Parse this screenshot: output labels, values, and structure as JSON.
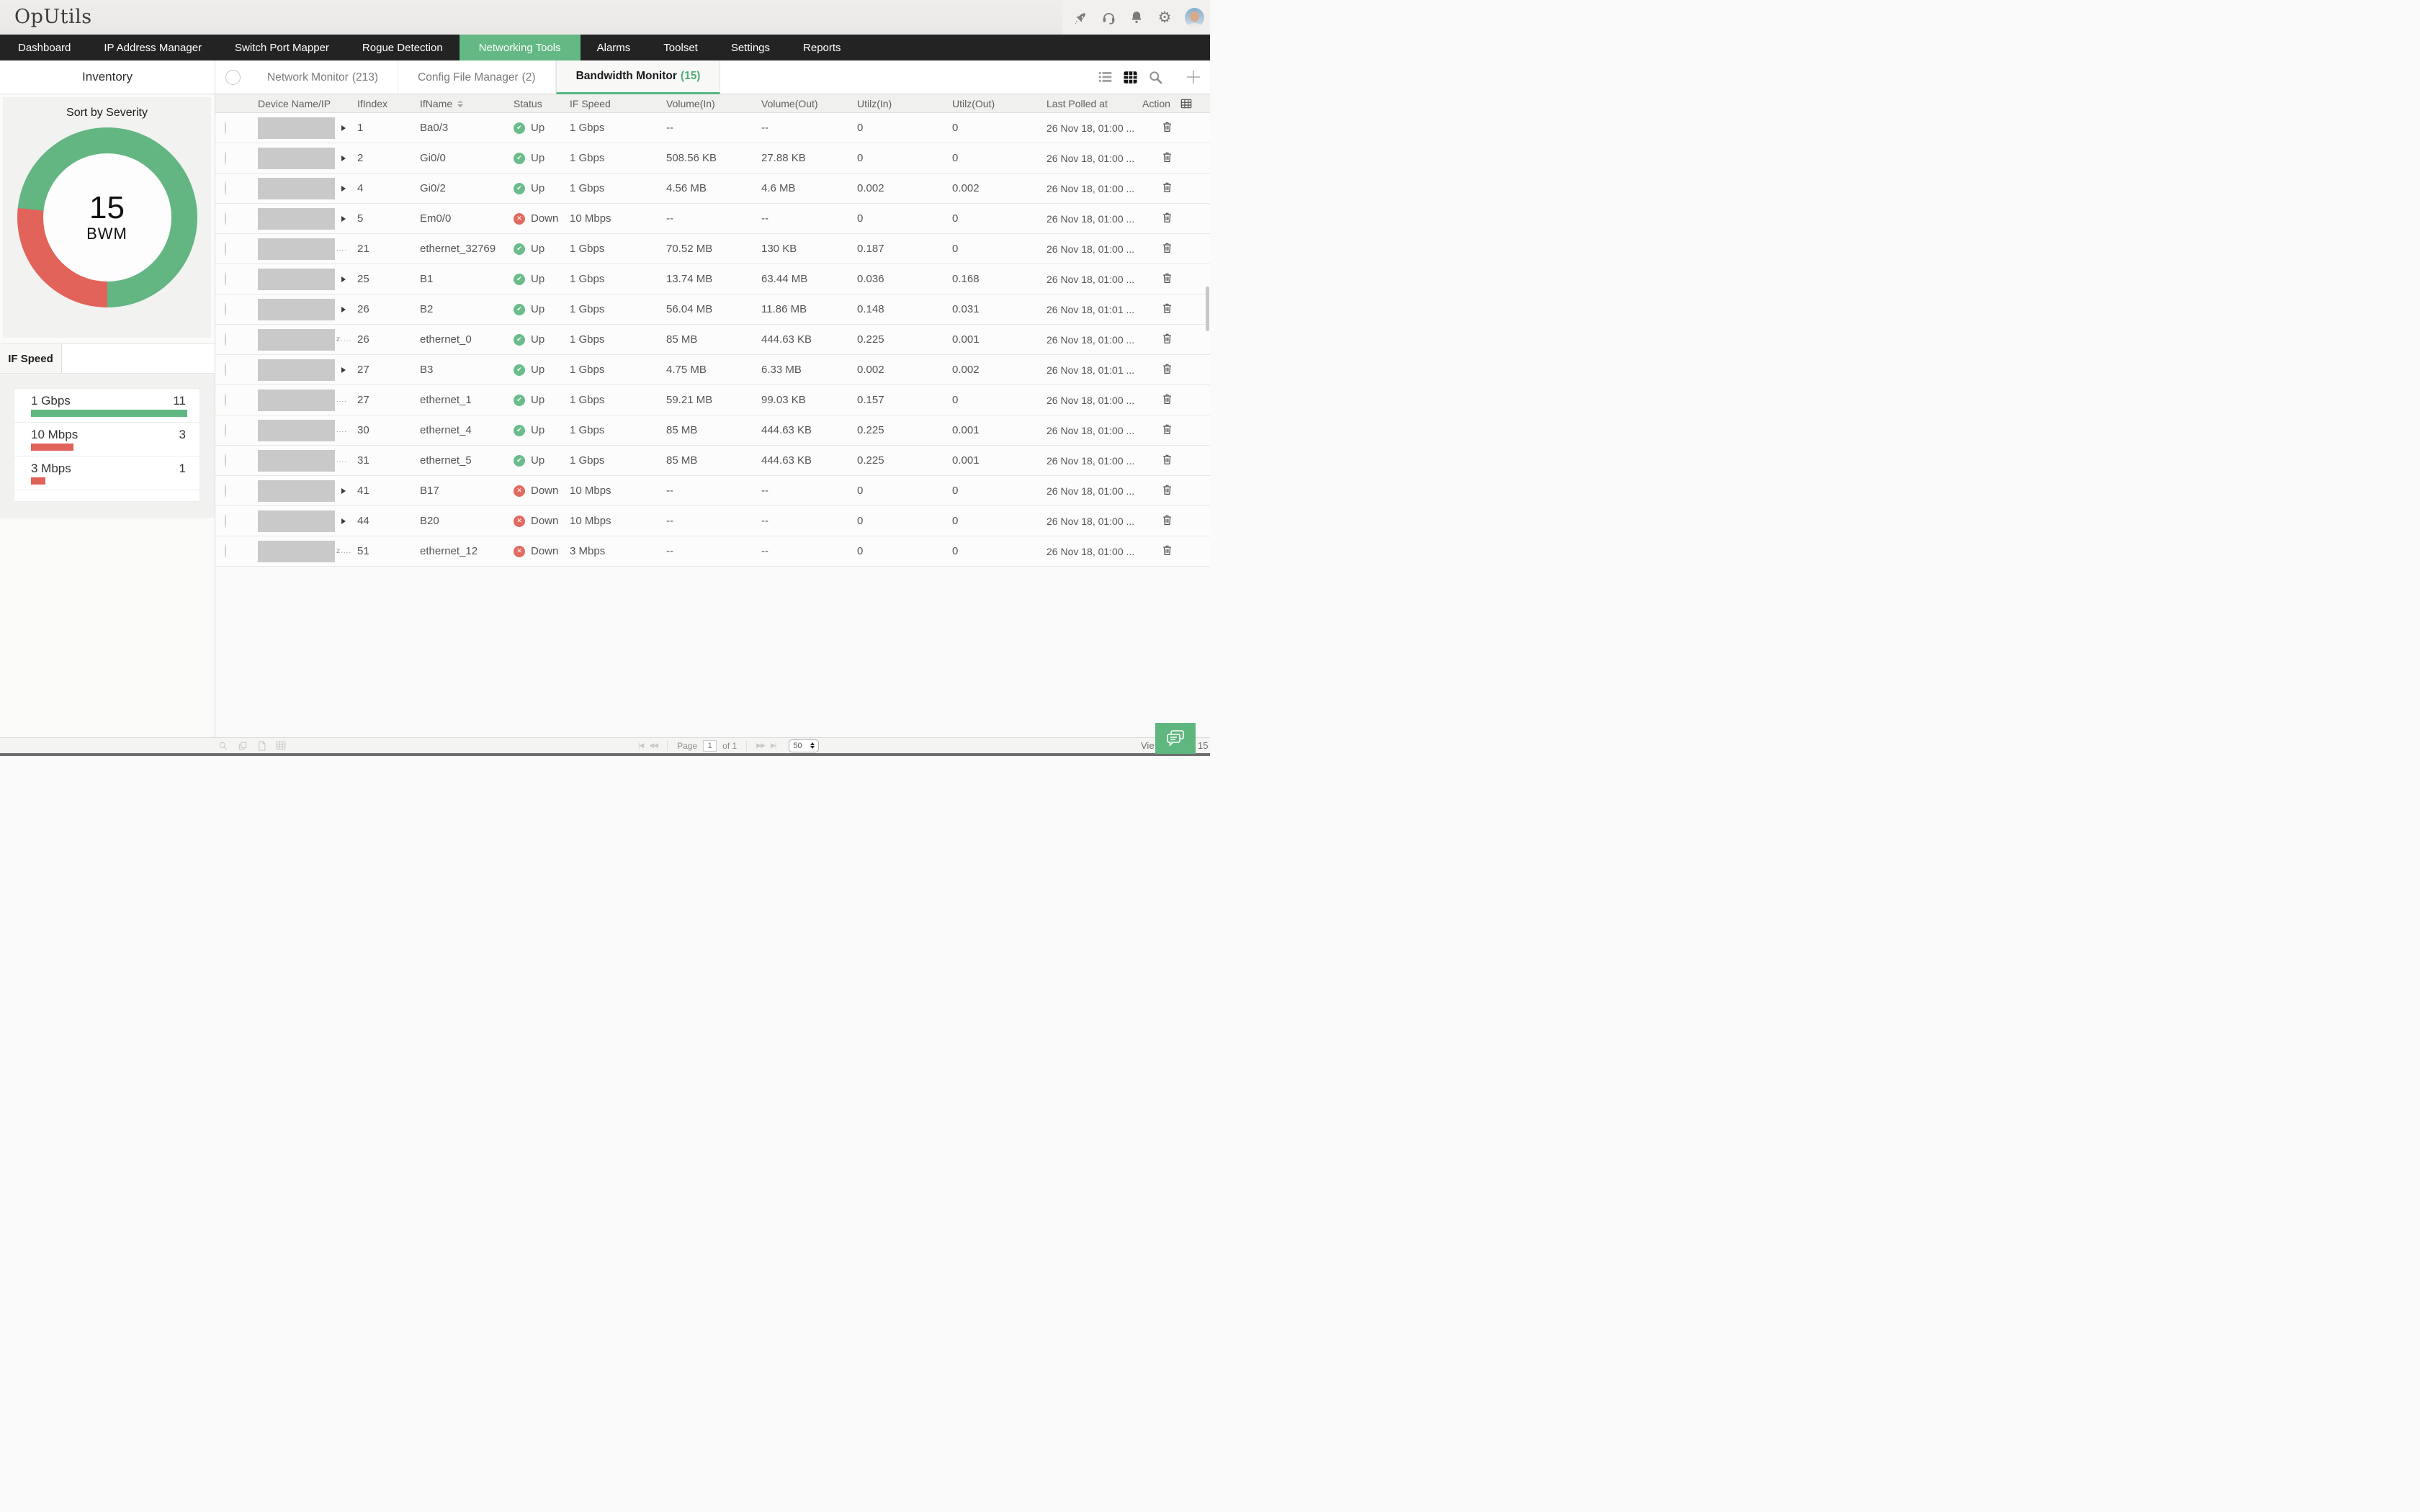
{
  "topbar": {
    "logo": "OpUtils",
    "icon_names": [
      "rocket-icon",
      "headset-support-icon",
      "bell-notifications-icon",
      "gear-settings-icon",
      "user-avatar"
    ]
  },
  "nav": {
    "items": [
      {
        "label": "Dashboard",
        "active": false
      },
      {
        "label": "IP Address Manager",
        "active": false
      },
      {
        "label": "Switch Port Mapper",
        "active": false
      },
      {
        "label": "Rogue Detection",
        "active": false
      },
      {
        "label": "Networking Tools",
        "active": true
      },
      {
        "label": "Alarms",
        "active": false
      },
      {
        "label": "Toolset",
        "active": false
      },
      {
        "label": "Settings",
        "active": false
      },
      {
        "label": "Reports",
        "active": false
      }
    ],
    "active_color": "#63b883"
  },
  "subtabs": {
    "sidebar_title": "Inventory",
    "tabs": [
      {
        "label": "Network Monitor",
        "count": "213",
        "active": false
      },
      {
        "label": "Config File Manager",
        "count": "2",
        "active": false
      },
      {
        "label": "Bandwidth Monitor",
        "count": "15",
        "active": true
      }
    ],
    "view_icon_names": [
      "list-view-icon",
      "grid-view-icon",
      "search-icon",
      "add-icon"
    ]
  },
  "sidebar": {
    "severity_title": "Sort by Severity",
    "donut": {
      "total": "15",
      "unit": "BWM",
      "segments": [
        {
          "label": "Up",
          "value": 11,
          "color": "#63b681"
        },
        {
          "label": "Down",
          "value": 4,
          "color": "#e2635a"
        }
      ]
    },
    "if_speed": {
      "tab_label": "IF Speed",
      "bars": [
        {
          "label": "1 Gbps",
          "count": "11",
          "color": "#62b681",
          "pct": 100
        },
        {
          "label": "10 Mbps",
          "count": "3",
          "color": "#e0625a",
          "pct": 27
        },
        {
          "label": "3 Mbps",
          "count": "1",
          "color": "#e0625a",
          "pct": 9
        }
      ]
    }
  },
  "chart_data": [
    {
      "type": "pie",
      "title": "Sort by Severity",
      "center_label": "15 BWM",
      "categories": [
        "Up",
        "Down"
      ],
      "values": [
        11,
        4
      ],
      "colors": [
        "#63b681",
        "#e2635a"
      ]
    },
    {
      "type": "bar",
      "title": "IF Speed",
      "categories": [
        "1 Gbps",
        "10 Mbps",
        "3 Mbps"
      ],
      "values": [
        11,
        3,
        1
      ],
      "colors": [
        "#62b681",
        "#e0625a",
        "#e0625a"
      ]
    }
  ],
  "table": {
    "columns": [
      "Device Name/IP",
      "IfIndex",
      "IfName",
      "Status",
      "IF Speed",
      "Volume(In)",
      "Volume(Out)",
      "Utilz(In)",
      "Utilz(Out)",
      "Last Polled at",
      "Action"
    ],
    "sort_column": "IfName",
    "rows": [
      {
        "ifindex": "1",
        "ifname": "Ba0/3",
        "status": "Up",
        "speed": "1 Gbps",
        "vol_in": "--",
        "vol_out": "--",
        "utilz_in": "0",
        "utilz_out": "0",
        "polled": "26 Nov 18, 01:00 ...",
        "suffix": "arrow"
      },
      {
        "ifindex": "2",
        "ifname": "Gi0/0",
        "status": "Up",
        "speed": "1 Gbps",
        "vol_in": "508.56 KB",
        "vol_out": "27.88 KB",
        "utilz_in": "0",
        "utilz_out": "0",
        "polled": "26 Nov 18, 01:00 ...",
        "suffix": "arrow"
      },
      {
        "ifindex": "4",
        "ifname": "Gi0/2",
        "status": "Up",
        "speed": "1 Gbps",
        "vol_in": "4.56 MB",
        "vol_out": "4.6 MB",
        "utilz_in": "0.002",
        "utilz_out": "0.002",
        "polled": "26 Nov 18, 01:00 ...",
        "suffix": "arrow"
      },
      {
        "ifindex": "5",
        "ifname": "Em0/0",
        "status": "Down",
        "speed": "10 Mbps",
        "vol_in": "--",
        "vol_out": "--",
        "utilz_in": "0",
        "utilz_out": "0",
        "polled": "26 Nov 18, 01:00 ...",
        "suffix": "arrow"
      },
      {
        "ifindex": "21",
        "ifname": "ethernet_32769",
        "status": "Up",
        "speed": "1 Gbps",
        "vol_in": "70.52 MB",
        "vol_out": "130 KB",
        "utilz_in": "0.187",
        "utilz_out": "0",
        "polled": "26 Nov 18, 01:00 ...",
        "suffix": "...."
      },
      {
        "ifindex": "25",
        "ifname": "B1",
        "status": "Up",
        "speed": "1 Gbps",
        "vol_in": "13.74 MB",
        "vol_out": "63.44 MB",
        "utilz_in": "0.036",
        "utilz_out": "0.168",
        "polled": "26 Nov 18, 01:00 ...",
        "suffix": "arrow"
      },
      {
        "ifindex": "26",
        "ifname": "B2",
        "status": "Up",
        "speed": "1 Gbps",
        "vol_in": "56.04 MB",
        "vol_out": "11.86 MB",
        "utilz_in": "0.148",
        "utilz_out": "0.031",
        "polled": "26 Nov 18, 01:01 ...",
        "suffix": "arrow"
      },
      {
        "ifindex": "26",
        "ifname": "ethernet_0",
        "status": "Up",
        "speed": "1 Gbps",
        "vol_in": "85 MB",
        "vol_out": "444.63 KB",
        "utilz_in": "0.225",
        "utilz_out": "0.001",
        "polled": "26 Nov 18, 01:00 ...",
        "suffix": "z...."
      },
      {
        "ifindex": "27",
        "ifname": "B3",
        "status": "Up",
        "speed": "1 Gbps",
        "vol_in": "4.75 MB",
        "vol_out": "6.33 MB",
        "utilz_in": "0.002",
        "utilz_out": "0.002",
        "polled": "26 Nov 18, 01:01 ...",
        "suffix": "arrow"
      },
      {
        "ifindex": "27",
        "ifname": "ethernet_1",
        "status": "Up",
        "speed": "1 Gbps",
        "vol_in": "59.21 MB",
        "vol_out": "99.03 KB",
        "utilz_in": "0.157",
        "utilz_out": "0",
        "polled": "26 Nov 18, 01:00 ...",
        "suffix": "...."
      },
      {
        "ifindex": "30",
        "ifname": "ethernet_4",
        "status": "Up",
        "speed": "1 Gbps",
        "vol_in": "85 MB",
        "vol_out": "444.63 KB",
        "utilz_in": "0.225",
        "utilz_out": "0.001",
        "polled": "26 Nov 18, 01:00 ...",
        "suffix": "...."
      },
      {
        "ifindex": "31",
        "ifname": "ethernet_5",
        "status": "Up",
        "speed": "1 Gbps",
        "vol_in": "85 MB",
        "vol_out": "444.63 KB",
        "utilz_in": "0.225",
        "utilz_out": "0.001",
        "polled": "26 Nov 18, 01:00 ...",
        "suffix": "...."
      },
      {
        "ifindex": "41",
        "ifname": "B17",
        "status": "Down",
        "speed": "10 Mbps",
        "vol_in": "--",
        "vol_out": "--",
        "utilz_in": "0",
        "utilz_out": "0",
        "polled": "26 Nov 18, 01:00 ...",
        "suffix": "arrow"
      },
      {
        "ifindex": "44",
        "ifname": "B20",
        "status": "Down",
        "speed": "10 Mbps",
        "vol_in": "--",
        "vol_out": "--",
        "utilz_in": "0",
        "utilz_out": "0",
        "polled": "26 Nov 18, 01:00 ...",
        "suffix": "arrow"
      },
      {
        "ifindex": "51",
        "ifname": "ethernet_12",
        "status": "Down",
        "speed": "3 Mbps",
        "vol_in": "--",
        "vol_out": "--",
        "utilz_in": "0",
        "utilz_out": "0",
        "polled": "26 Nov 18, 01:00 ...",
        "suffix": "z...."
      }
    ],
    "status_colors": {
      "up": "#6abd8b",
      "down": "#e26b61"
    }
  },
  "footer": {
    "tool_icon_names": [
      "zoom-icon",
      "duplicate-icon",
      "export-file-icon",
      "export-grid-icon"
    ],
    "pager": {
      "first": "|◀",
      "prev": "◀◀",
      "next": "▶▶",
      "last": "▶|"
    },
    "page_label": "Page",
    "page_value": "1",
    "of_label": "of 1",
    "page_size": "50",
    "viewing_prefix": "Vie",
    "viewing_suffix": "15"
  }
}
